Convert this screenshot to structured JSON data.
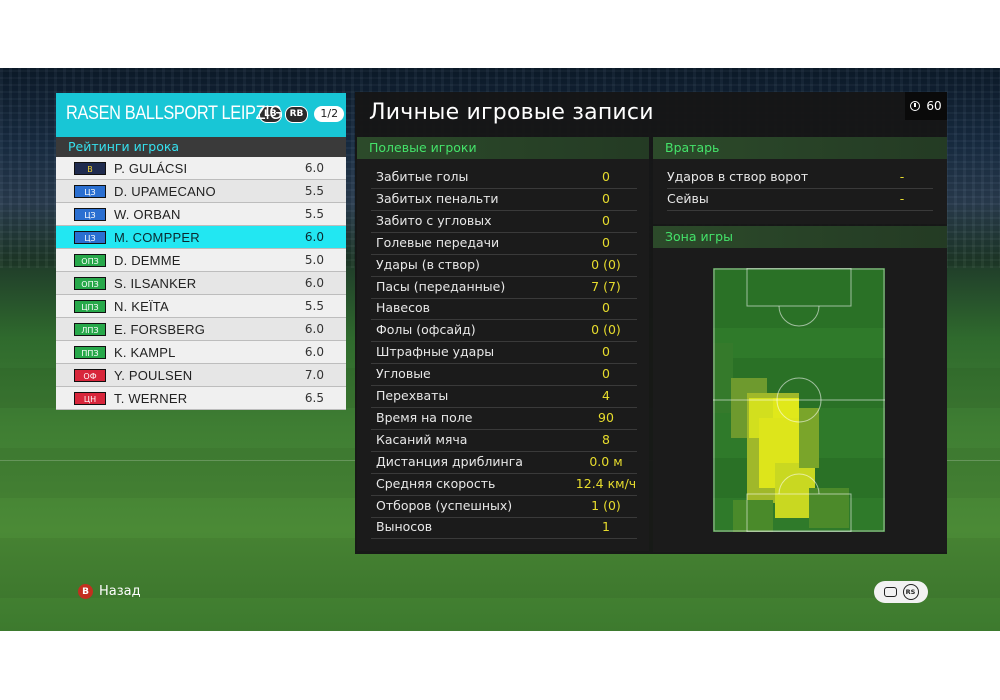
{
  "team": {
    "name": "RASEN BALLSPORT LEIPZIG",
    "lb": "LB",
    "rb": "RB",
    "page": "1/2",
    "ratings_title": "Рейтинги игрока",
    "players": [
      {
        "pos": "В",
        "pos_color": "#1e2a55",
        "name": "P. GULÁCSI",
        "rating": "6.0"
      },
      {
        "pos": "ЦЗ",
        "pos_color": "#2a6fd1",
        "name": "D. UPAMECANO",
        "rating": "5.5"
      },
      {
        "pos": "ЦЗ",
        "pos_color": "#2a6fd1",
        "name": "W. ORBAN",
        "rating": "5.5"
      },
      {
        "pos": "ЦЗ",
        "pos_color": "#2a6fd1",
        "name": "M. COMPPER",
        "rating": "6.0"
      },
      {
        "pos": "ОПЗ",
        "pos_color": "#27a84a",
        "name": "D. DEMME",
        "rating": "5.0"
      },
      {
        "pos": "ОПЗ",
        "pos_color": "#27a84a",
        "name": "S. ILSANKER",
        "rating": "6.0"
      },
      {
        "pos": "ЦПЗ",
        "pos_color": "#27a84a",
        "name": "N. KEÏTA",
        "rating": "5.5"
      },
      {
        "pos": "ЛПЗ",
        "pos_color": "#27a84a",
        "name": "E. FORSBERG",
        "rating": "6.0"
      },
      {
        "pos": "ППЗ",
        "pos_color": "#27a84a",
        "name": "K. KAMPL",
        "rating": "6.0"
      },
      {
        "pos": "ОФ",
        "pos_color": "#d8263b",
        "name": "Y. POULSEN",
        "rating": "7.0"
      },
      {
        "pos": "ЦН",
        "pos_color": "#d8263b",
        "name": "T. WERNER",
        "rating": "6.5"
      }
    ],
    "selected_index": 3
  },
  "main": {
    "title": "Личные игровые записи",
    "timer": "60"
  },
  "field_players": {
    "title": "Полевые игроки",
    "stats": [
      {
        "label": "Забитые голы",
        "value": "0"
      },
      {
        "label": "Забитых пенальти",
        "value": "0"
      },
      {
        "label": "Забито с угловых",
        "value": "0"
      },
      {
        "label": "Голевые передачи",
        "value": "0"
      },
      {
        "label": "Удары (в створ)",
        "value": "0 (0)"
      },
      {
        "label": "Пасы (переданные)",
        "value": "7 (7)"
      },
      {
        "label": "Навесов",
        "value": "0"
      },
      {
        "label": "Фолы (офсайд)",
        "value": "0 (0)"
      },
      {
        "label": "Штрафные удары",
        "value": "0"
      },
      {
        "label": "Угловые",
        "value": "0"
      },
      {
        "label": "Перехваты",
        "value": "4"
      },
      {
        "label": "Время на поле",
        "value": "90"
      },
      {
        "label": "Касаний мяча",
        "value": "8"
      },
      {
        "label": "Дистанция дриблинга",
        "value": "0.0 м"
      },
      {
        "label": "Средняя скорость",
        "value": "12.4 км/ч"
      },
      {
        "label": "Отборов (успешных)",
        "value": "1 (0)"
      },
      {
        "label": "Выносов",
        "value": "1"
      }
    ]
  },
  "goalkeeper": {
    "title": "Вратарь",
    "stats": [
      {
        "label": "Ударов в створ ворот",
        "value": "-"
      },
      {
        "label": "Сейвы",
        "value": "-"
      }
    ]
  },
  "zone": {
    "title": "Зона игры"
  },
  "footer": {
    "back_button_glyph": "B",
    "back_label": "Назад",
    "right_stick_label": "RS"
  }
}
